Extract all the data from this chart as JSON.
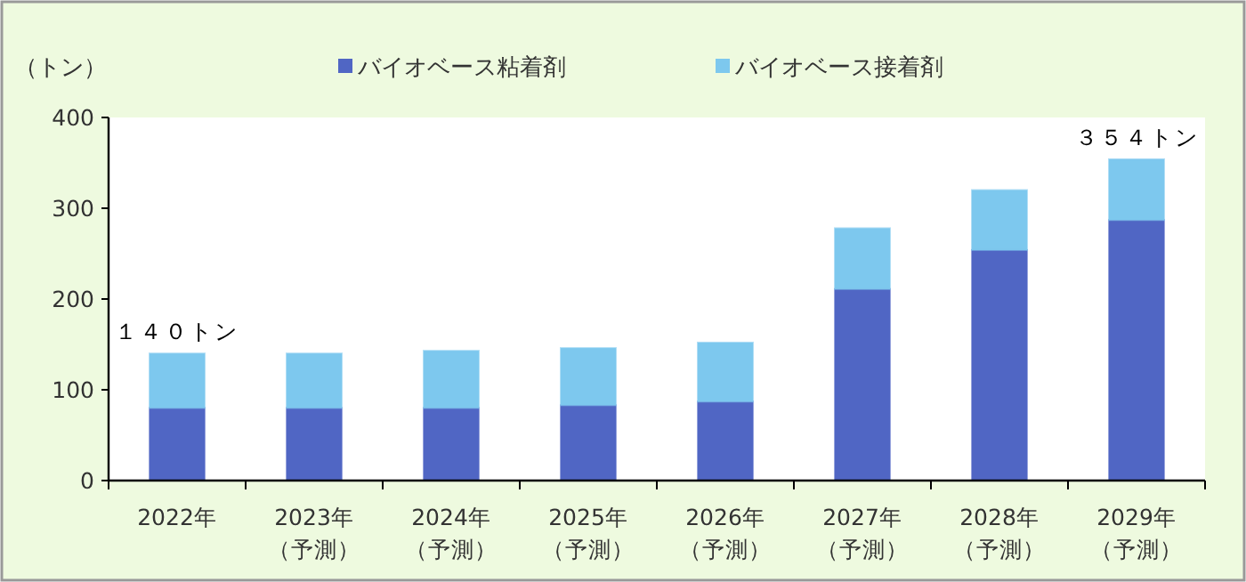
{
  "chart_data": {
    "type": "bar",
    "stacked": true,
    "ylabel": "（トン）",
    "legend": "top",
    "categories": [
      "2022年",
      "2023年（予測）",
      "2024年（予測）",
      "2025年（予測）",
      "2026年（予測）",
      "2027年（予測）",
      "2028年（予測）",
      "2029年（予測）"
    ],
    "series": [
      {
        "name": "バイオベース粘着剤",
        "color": "#5066c4",
        "values": [
          80,
          80,
          80,
          83,
          87,
          211,
          254,
          287
        ]
      },
      {
        "name": "バイオベース接着剤",
        "color": "#7dc8ee",
        "values": [
          60,
          60,
          63,
          63,
          65,
          67,
          66,
          67
        ]
      }
    ],
    "ylim": [
      0,
      400
    ],
    "yticks": [
      0,
      100,
      200,
      300,
      400
    ],
    "annotations": [
      {
        "text": "１４０トン",
        "x": "2022年",
        "y": 140
      },
      {
        "text": "３５４トン",
        "x": "2029年（予測）",
        "y": 354
      }
    ]
  }
}
